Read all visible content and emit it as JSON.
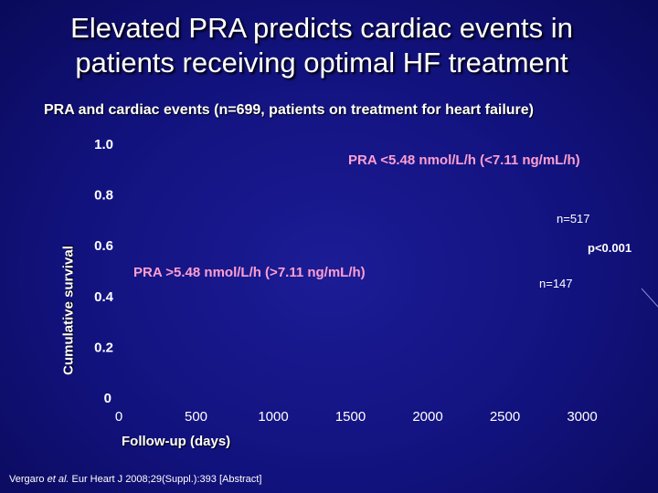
{
  "slide": {
    "title_line1": "Elevated PRA predicts cardiac events in",
    "title_line2": "patients receiving optimal HF treatment",
    "subtitle": "PRA and cardiac events (n=699, patients on treatment for heart failure)",
    "citation_author": "Vergaro ",
    "citation_etal": "et al.",
    "citation_rest": " Eur Heart J 2008;29(Suppl.):393 [Abstract]"
  },
  "colors": {
    "background": "#16168a",
    "text": "#ffffff",
    "group_label": "#ff9fd0"
  },
  "chart_data": {
    "type": "line",
    "title": "PRA and cardiac events (n=699, patients on treatment for heart failure)",
    "xlabel": "Follow-up (days)",
    "ylabel": "Cumulative survival",
    "xlim": [
      0,
      3000
    ],
    "ylim": [
      0,
      1.0
    ],
    "x_ticks": [
      0,
      500,
      1000,
      1500,
      2000,
      2500,
      3000
    ],
    "x_tick_labels": [
      "0",
      "500",
      "1000",
      "1500",
      "2000",
      "2500",
      "3000"
    ],
    "y_ticks": [
      0,
      0.2,
      0.4,
      0.6,
      0.8,
      1.0
    ],
    "y_tick_labels": [
      "0",
      "0.2",
      "0.4",
      "0.6",
      "0.8",
      "1.0"
    ],
    "series": [
      {
        "name": "PRA <5.48 nmol/L/h (<7.11 ng/mL/h)",
        "n_label": "n=517",
        "x": [],
        "y": []
      },
      {
        "name": "PRA >5.48 nmol/L/h (>7.11 ng/mL/h)",
        "n_label": "n=147",
        "x": [],
        "y": []
      }
    ],
    "annotations": {
      "p_value": "p<0.001"
    }
  }
}
